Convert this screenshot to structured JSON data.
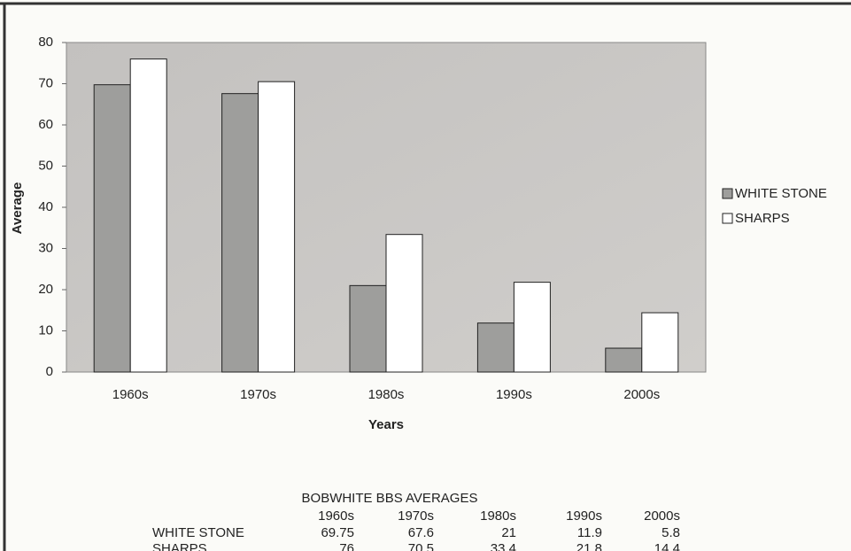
{
  "chart_data": {
    "type": "bar",
    "y_label": "Average",
    "x_label": "Years",
    "categories": [
      "1960s",
      "1970s",
      "1980s",
      "1990s",
      "2000s"
    ],
    "series": [
      {
        "name": "WHITE STONE",
        "color": "#9e9e9c",
        "values": [
          69.75,
          67.6,
          21,
          11.9,
          5.8
        ]
      },
      {
        "name": "SHARPS",
        "color": "#ffffff",
        "values": [
          76,
          70.5,
          33.4,
          21.8,
          14.4
        ]
      }
    ],
    "ylim": [
      0,
      80
    ],
    "yticks": [
      0,
      10,
      20,
      30,
      40,
      50,
      60,
      70,
      80
    ],
    "legend": "right",
    "table_title": "BOBWHITE BBS AVERAGES"
  }
}
